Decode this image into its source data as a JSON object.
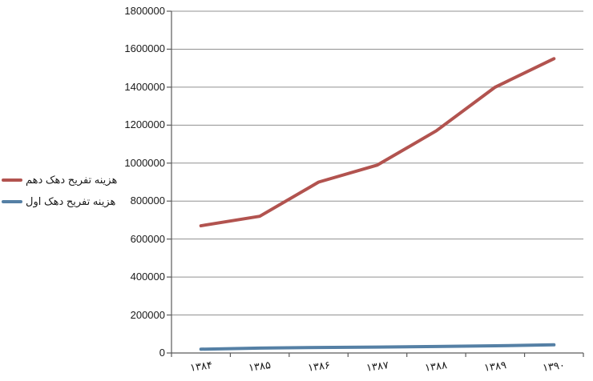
{
  "chart_data": {
    "type": "line",
    "title": "",
    "xlabel": "",
    "ylabel": "",
    "categories": [
      "۱۳۸۴",
      "۱۳۸۵",
      "۱۳۸۶",
      "۱۳۸۷",
      "۱۳۸۸",
      "۱۳۸۹",
      "۱۳۹۰"
    ],
    "series": [
      {
        "name": "هزینه تفریح دهک  دهم",
        "color": "#B2534F",
        "values": [
          670000,
          720000,
          900000,
          990000,
          1170000,
          1400000,
          1550000
        ]
      },
      {
        "name": "هزینه تفریح دهک اول",
        "color": "#5580A5",
        "values": [
          20000,
          26000,
          29000,
          31000,
          34000,
          38000,
          43000
        ]
      }
    ],
    "ylim": [
      0,
      1800000
    ],
    "ytick_interval": 200000,
    "ytick_labels": [
      "0",
      "200000",
      "400000",
      "600000",
      "800000",
      "1000000",
      "1200000",
      "1400000",
      "1600000",
      "1800000"
    ],
    "grid": true,
    "legend_position": "left-middle"
  },
  "colors": {
    "background": "#FFFFFF",
    "gridline": "#919191",
    "axis": "#5A5A5A",
    "text": "#1A1A1A"
  }
}
